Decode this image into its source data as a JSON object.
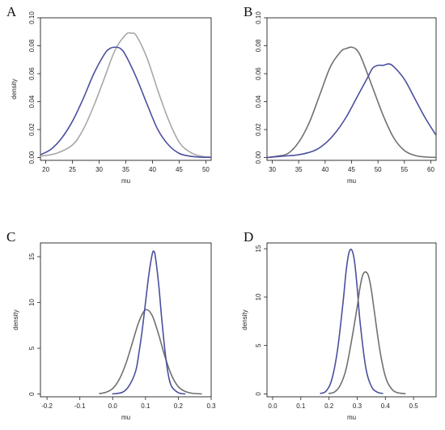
{
  "colors": {
    "blue": "#4b4f9e",
    "gray_light": "#a8a8a8",
    "gray_dark": "#707070"
  },
  "chart_data": [
    {
      "panel": "A",
      "type": "line",
      "xlabel": "mu",
      "ylabel": "density",
      "xlim": [
        19,
        51
      ],
      "ylim": [
        -0.002,
        0.1
      ],
      "xticks": [
        20,
        25,
        30,
        35,
        40,
        45,
        50
      ],
      "yticks": [
        0.0,
        0.02,
        0.04,
        0.06,
        0.08,
        0.1
      ],
      "ytick_labels": [
        "0.00",
        "0.02",
        "0.04",
        "0.06",
        "0.08",
        "0.10"
      ],
      "series": [
        {
          "color": "gray_light",
          "x": [
            19,
            22,
            25,
            27,
            29,
            31,
            33,
            35,
            36,
            37,
            39,
            41,
            43,
            45,
            47,
            49,
            51
          ],
          "y": [
            0.001,
            0.003,
            0.009,
            0.02,
            0.037,
            0.057,
            0.077,
            0.088,
            0.089,
            0.087,
            0.071,
            0.048,
            0.027,
            0.011,
            0.004,
            0.001,
            0.0003
          ]
        },
        {
          "color": "blue",
          "x": [
            19,
            21,
            23,
            25,
            27,
            29,
            31,
            32,
            33,
            34,
            35,
            37,
            39,
            41,
            43,
            45,
            47,
            49,
            51
          ],
          "y": [
            0.002,
            0.006,
            0.014,
            0.026,
            0.042,
            0.06,
            0.074,
            0.078,
            0.079,
            0.078,
            0.073,
            0.057,
            0.038,
            0.02,
            0.009,
            0.003,
            0.001,
            0.0003,
            0.0001
          ]
        }
      ]
    },
    {
      "panel": "B",
      "type": "line",
      "xlabel": "mu",
      "ylabel": "density",
      "xlim": [
        29,
        61
      ],
      "ylim": [
        -0.002,
        0.1
      ],
      "xticks": [
        30,
        35,
        40,
        45,
        50,
        55,
        60
      ],
      "yticks": [
        0.0,
        0.02,
        0.04,
        0.06,
        0.08,
        0.1
      ],
      "ytick_labels": [
        "0.00",
        "0.02",
        "0.04",
        "0.06",
        "0.08",
        "0.10"
      ],
      "series": [
        {
          "color": "gray_dark",
          "x": [
            29,
            31,
            33,
            35,
            37,
            39,
            41,
            43,
            44,
            45,
            46,
            47,
            49,
            51,
            53,
            55,
            57,
            59,
            61
          ],
          "y": [
            0.0,
            0.001,
            0.003,
            0.011,
            0.025,
            0.045,
            0.065,
            0.076,
            0.078,
            0.079,
            0.077,
            0.07,
            0.05,
            0.03,
            0.014,
            0.005,
            0.0015,
            0.0004,
            0.0001
          ]
        },
        {
          "color": "blue",
          "x": [
            29,
            32,
            35,
            38,
            40,
            42,
            44,
            46,
            48,
            49,
            50,
            51,
            52,
            53,
            55,
            57,
            59,
            61
          ],
          "y": [
            0.0,
            0.001,
            0.002,
            0.005,
            0.01,
            0.018,
            0.029,
            0.043,
            0.057,
            0.064,
            0.066,
            0.066,
            0.067,
            0.065,
            0.056,
            0.042,
            0.028,
            0.016
          ]
        }
      ]
    },
    {
      "panel": "C",
      "type": "line",
      "xlabel": "mu",
      "ylabel": "density",
      "xlim": [
        -0.22,
        0.3
      ],
      "ylim": [
        -0.3,
        16.5
      ],
      "xticks": [
        -0.2,
        -0.1,
        0.0,
        0.1,
        0.2,
        0.3
      ],
      "xtick_labels": [
        "-0.2",
        "-0.1",
        "0.0",
        "0.1",
        "0.2",
        "0.3"
      ],
      "yticks": [
        0,
        5,
        10,
        15
      ],
      "ytick_labels": [
        "0",
        "5",
        "10",
        "15"
      ],
      "series": [
        {
          "color": "gray_dark",
          "x": [
            -0.04,
            -0.02,
            0.0,
            0.02,
            0.04,
            0.06,
            0.08,
            0.1,
            0.12,
            0.14,
            0.16,
            0.18,
            0.2,
            0.22,
            0.24,
            0.27
          ],
          "y": [
            0.05,
            0.2,
            0.6,
            1.6,
            3.3,
            5.6,
            7.9,
            9.2,
            8.6,
            6.5,
            4.0,
            2.0,
            0.8,
            0.3,
            0.1,
            0.02
          ]
        },
        {
          "color": "blue",
          "x": [
            0.0,
            0.03,
            0.05,
            0.07,
            0.08,
            0.09,
            0.1,
            0.11,
            0.12,
            0.125,
            0.13,
            0.14,
            0.15,
            0.16,
            0.17,
            0.18,
            0.2,
            0.22
          ],
          "y": [
            0.02,
            0.2,
            0.9,
            2.5,
            4.5,
            7.0,
            10.0,
            13.0,
            15.2,
            15.6,
            15.0,
            12.0,
            8.0,
            4.5,
            2.0,
            0.8,
            0.15,
            0.02
          ]
        }
      ]
    },
    {
      "panel": "D",
      "type": "line",
      "xlabel": "mu",
      "ylabel": "density",
      "xlim": [
        -0.02,
        0.58
      ],
      "ylim": [
        -0.3,
        15.6
      ],
      "xticks": [
        0.0,
        0.1,
        0.2,
        0.3,
        0.4,
        0.5
      ],
      "xtick_labels": [
        "0.0",
        "0.1",
        "0.2",
        "0.3",
        "0.4",
        "0.5"
      ],
      "yticks": [
        0,
        5,
        10,
        15
      ],
      "ytick_labels": [
        "0",
        "5",
        "10",
        "15"
      ],
      "series": [
        {
          "color": "blue",
          "x": [
            0.17,
            0.19,
            0.21,
            0.23,
            0.25,
            0.26,
            0.27,
            0.28,
            0.29,
            0.3,
            0.31,
            0.33,
            0.35,
            0.37,
            0.39
          ],
          "y": [
            0.05,
            0.3,
            1.5,
            4.5,
            9.5,
            12.5,
            14.5,
            14.9,
            13.8,
            11.0,
            7.5,
            2.8,
            0.8,
            0.2,
            0.05
          ]
        },
        {
          "color": "gray_dark",
          "x": [
            0.2,
            0.22,
            0.24,
            0.26,
            0.28,
            0.3,
            0.31,
            0.32,
            0.33,
            0.34,
            0.35,
            0.36,
            0.38,
            0.4,
            0.42,
            0.44,
            0.47
          ],
          "y": [
            0.05,
            0.2,
            0.9,
            2.5,
            5.5,
            9.0,
            11.0,
            12.3,
            12.6,
            12.2,
            10.8,
            8.7,
            4.6,
            1.8,
            0.6,
            0.15,
            0.02
          ]
        }
      ]
    }
  ]
}
